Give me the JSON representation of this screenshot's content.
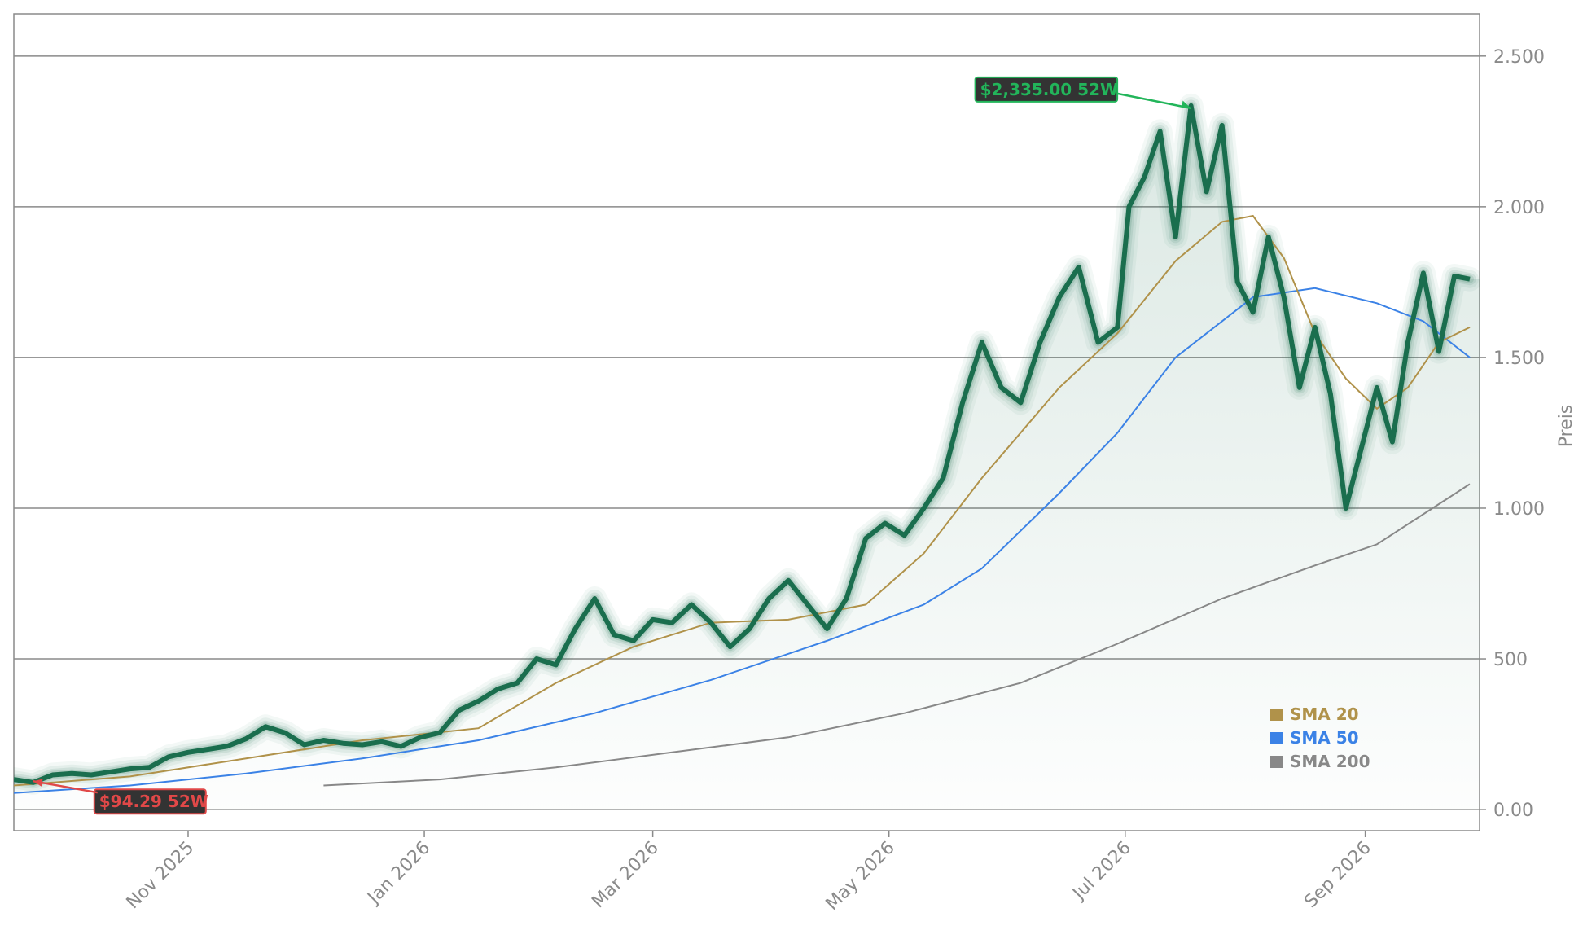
{
  "chart_data": {
    "type": "line",
    "ylabel": "Preis",
    "y_ticks": [
      {
        "value": 0,
        "label": "0.00"
      },
      {
        "value": 500,
        "label": "500"
      },
      {
        "value": 1000,
        "label": "1.000"
      },
      {
        "value": 1500,
        "label": "1.500"
      },
      {
        "value": 2000,
        "label": "2.000"
      },
      {
        "value": 2500,
        "label": "2.500"
      }
    ],
    "x_ticks": [
      {
        "date": "2025-11-01",
        "label": "Nov 2025"
      },
      {
        "date": "2026-01-01",
        "label": "Jan 2026"
      },
      {
        "date": "2026-03-01",
        "label": "Mar 2026"
      },
      {
        "date": "2026-05-01",
        "label": "May 2026"
      },
      {
        "date": "2026-07-01",
        "label": "Jul 2026"
      },
      {
        "date": "2026-09-01",
        "label": "Sep 2026"
      }
    ],
    "x_range": [
      "2025-09-17",
      "2026-09-28"
    ],
    "ylim": [
      -70,
      2640
    ],
    "grid": "horizontal",
    "legend_position": "bottom-right",
    "colors": {
      "price": "#1a6e4e",
      "sma20": "#b0924a",
      "sma50": "#3b82e6",
      "sma200": "#888888",
      "high": "#22b55a",
      "low": "#e04848"
    },
    "price_series": [
      [
        "2025-09-17",
        100
      ],
      [
        "2025-09-22",
        90
      ],
      [
        "2025-09-27",
        115
      ],
      [
        "2025-10-02",
        120
      ],
      [
        "2025-10-07",
        115
      ],
      [
        "2025-10-12",
        125
      ],
      [
        "2025-10-17",
        135
      ],
      [
        "2025-10-22",
        140
      ],
      [
        "2025-10-27",
        175
      ],
      [
        "2025-11-01",
        190
      ],
      [
        "2025-11-06",
        200
      ],
      [
        "2025-11-11",
        210
      ],
      [
        "2025-11-16",
        235
      ],
      [
        "2025-11-21",
        275
      ],
      [
        "2025-11-26",
        255
      ],
      [
        "2025-12-01",
        215
      ],
      [
        "2025-12-06",
        230
      ],
      [
        "2025-12-11",
        220
      ],
      [
        "2025-12-16",
        215
      ],
      [
        "2025-12-21",
        225
      ],
      [
        "2025-12-26",
        210
      ],
      [
        "2025-12-31",
        240
      ],
      [
        "2026-01-05",
        255
      ],
      [
        "2026-01-10",
        330
      ],
      [
        "2026-01-15",
        360
      ],
      [
        "2026-01-20",
        400
      ],
      [
        "2026-01-25",
        420
      ],
      [
        "2026-01-30",
        500
      ],
      [
        "2026-02-04",
        480
      ],
      [
        "2026-02-09",
        600
      ],
      [
        "2026-02-14",
        700
      ],
      [
        "2026-02-19",
        580
      ],
      [
        "2026-02-24",
        560
      ],
      [
        "2026-03-01",
        630
      ],
      [
        "2026-03-06",
        620
      ],
      [
        "2026-03-11",
        680
      ],
      [
        "2026-03-16",
        620
      ],
      [
        "2026-03-21",
        540
      ],
      [
        "2026-03-26",
        600
      ],
      [
        "2026-03-31",
        700
      ],
      [
        "2026-04-05",
        760
      ],
      [
        "2026-04-10",
        680
      ],
      [
        "2026-04-15",
        600
      ],
      [
        "2026-04-20",
        700
      ],
      [
        "2026-04-25",
        900
      ],
      [
        "2026-04-30",
        950
      ],
      [
        "2026-05-05",
        910
      ],
      [
        "2026-05-10",
        1000
      ],
      [
        "2026-05-15",
        1100
      ],
      [
        "2026-05-20",
        1350
      ],
      [
        "2026-05-25",
        1550
      ],
      [
        "2026-05-30",
        1400
      ],
      [
        "2026-06-04",
        1350
      ],
      [
        "2026-06-09",
        1550
      ],
      [
        "2026-06-14",
        1700
      ],
      [
        "2026-06-19",
        1800
      ],
      [
        "2026-06-24",
        1550
      ],
      [
        "2026-06-29",
        1600
      ],
      [
        "2026-07-02",
        2000
      ],
      [
        "2026-07-06",
        2100
      ],
      [
        "2026-07-10",
        2250
      ],
      [
        "2026-07-14",
        1900
      ],
      [
        "2026-07-18",
        2335
      ],
      [
        "2026-07-22",
        2050
      ],
      [
        "2026-07-26",
        2270
      ],
      [
        "2026-07-30",
        1750
      ],
      [
        "2026-08-03",
        1650
      ],
      [
        "2026-08-07",
        1900
      ],
      [
        "2026-08-11",
        1700
      ],
      [
        "2026-08-15",
        1400
      ],
      [
        "2026-08-19",
        1600
      ],
      [
        "2026-08-23",
        1380
      ],
      [
        "2026-08-27",
        1000
      ],
      [
        "2026-08-31",
        1200
      ],
      [
        "2026-09-04",
        1400
      ],
      [
        "2026-09-08",
        1220
      ],
      [
        "2026-09-12",
        1550
      ],
      [
        "2026-09-16",
        1780
      ],
      [
        "2026-09-20",
        1520
      ],
      [
        "2026-09-24",
        1770
      ],
      [
        "2026-09-28",
        1760
      ]
    ],
    "series": [
      {
        "name": "SMA 20",
        "values": [
          [
            "2025-09-17",
            80
          ],
          [
            "2025-10-17",
            110
          ],
          [
            "2025-11-16",
            170
          ],
          [
            "2025-12-16",
            230
          ],
          [
            "2026-01-15",
            270
          ],
          [
            "2026-02-04",
            420
          ],
          [
            "2026-02-24",
            540
          ],
          [
            "2026-03-16",
            620
          ],
          [
            "2026-04-05",
            630
          ],
          [
            "2026-04-25",
            680
          ],
          [
            "2026-05-10",
            850
          ],
          [
            "2026-05-25",
            1100
          ],
          [
            "2026-06-14",
            1400
          ],
          [
            "2026-06-29",
            1580
          ],
          [
            "2026-07-14",
            1820
          ],
          [
            "2026-07-26",
            1950
          ],
          [
            "2026-08-03",
            1970
          ],
          [
            "2026-08-11",
            1830
          ],
          [
            "2026-08-19",
            1580
          ],
          [
            "2026-08-27",
            1430
          ],
          [
            "2026-09-04",
            1330
          ],
          [
            "2026-09-12",
            1400
          ],
          [
            "2026-09-20",
            1550
          ],
          [
            "2026-09-28",
            1600
          ]
        ]
      },
      {
        "name": "SMA 50",
        "values": [
          [
            "2025-09-17",
            55
          ],
          [
            "2025-10-17",
            80
          ],
          [
            "2025-11-16",
            120
          ],
          [
            "2025-12-16",
            170
          ],
          [
            "2026-01-15",
            230
          ],
          [
            "2026-02-14",
            320
          ],
          [
            "2026-03-16",
            430
          ],
          [
            "2026-04-15",
            560
          ],
          [
            "2026-05-10",
            680
          ],
          [
            "2026-05-25",
            800
          ],
          [
            "2026-06-14",
            1050
          ],
          [
            "2026-06-29",
            1250
          ],
          [
            "2026-07-14",
            1500
          ],
          [
            "2026-08-03",
            1700
          ],
          [
            "2026-08-19",
            1730
          ],
          [
            "2026-09-04",
            1680
          ],
          [
            "2026-09-16",
            1620
          ],
          [
            "2026-09-28",
            1500
          ]
        ]
      },
      {
        "name": "SMA 200",
        "values": [
          [
            "2025-12-06",
            80
          ],
          [
            "2026-01-05",
            100
          ],
          [
            "2026-02-04",
            140
          ],
          [
            "2026-03-06",
            190
          ],
          [
            "2026-04-05",
            240
          ],
          [
            "2026-05-05",
            320
          ],
          [
            "2026-06-04",
            420
          ],
          [
            "2026-06-29",
            550
          ],
          [
            "2026-07-26",
            700
          ],
          [
            "2026-08-19",
            810
          ],
          [
            "2026-09-04",
            880
          ],
          [
            "2026-09-16",
            980
          ],
          [
            "2026-09-28",
            1080
          ]
        ]
      }
    ],
    "annotations": [
      {
        "label": "$2,335.00 52W",
        "date": "2026-07-18",
        "value": 2335,
        "kind": "high"
      },
      {
        "label": "$94.29 52W",
        "date": "2025-09-22",
        "value": 94.29,
        "kind": "low"
      }
    ]
  }
}
